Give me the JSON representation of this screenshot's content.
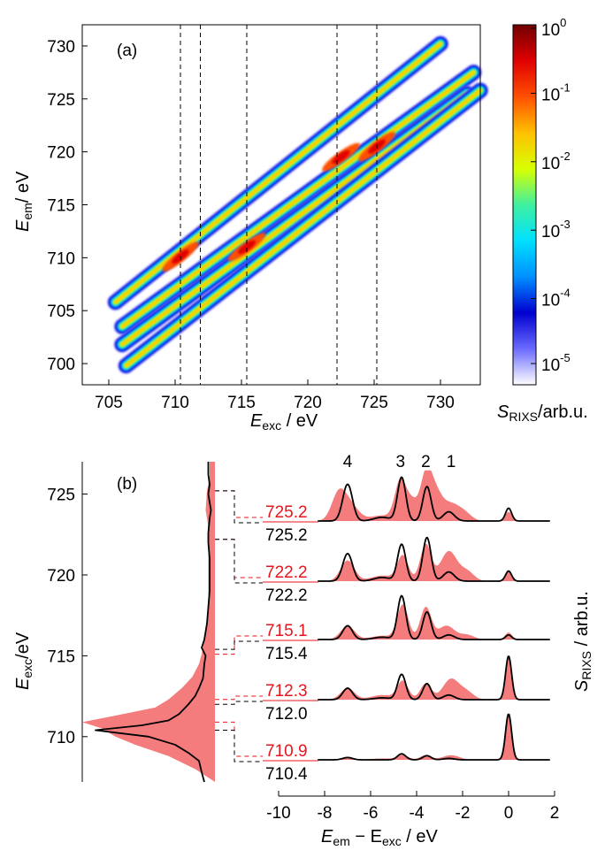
{
  "chart_data": [
    {
      "type": "heatmap",
      "panel_label": "(a)",
      "xlabel_main": "E",
      "xlabel_sub": "exc",
      "xlabel_unit": " / eV",
      "ylabel_main": "E",
      "ylabel_sub": "em",
      "ylabel_unit": "/ eV",
      "xlim": [
        703,
        733
      ],
      "ylim": [
        698,
        732
      ],
      "x_ticks": [
        705,
        710,
        715,
        720,
        725,
        730
      ],
      "y_ticks": [
        700,
        705,
        710,
        715,
        720,
        725,
        730
      ],
      "vlines": [
        710.4,
        711.9,
        715.4,
        722.2,
        725.2
      ],
      "colorbar": {
        "label_main": "S",
        "label_sub": "RIXS",
        "label_unit": "/arb.u.",
        "scale": "log",
        "ticks": [
          {
            "base": "10",
            "exp": "0"
          },
          {
            "base": "10",
            "exp": "-1"
          },
          {
            "base": "10",
            "exp": "-2"
          },
          {
            "base": "10",
            "exp": "-3"
          },
          {
            "base": "10",
            "exp": "-4"
          },
          {
            "base": "10",
            "exp": "-5"
          }
        ],
        "colors": [
          "#ffffff",
          "#6a6aff",
          "#0000d0",
          "#0090ff",
          "#00e0ff",
          "#40f0a0",
          "#d8ff00",
          "#ffc000",
          "#ff5000",
          "#e00000",
          "#700000"
        ]
      },
      "bands": [
        {
          "x": [
            705.5,
            730
          ],
          "y": [
            705.8,
            730.2
          ],
          "peak_x": 710.4,
          "peak_y": 710.1
        },
        {
          "x": [
            706,
            732.5
          ],
          "y": [
            703.5,
            727.5
          ],
          "peak_x": 722.5,
          "peak_y": 719.5
        },
        {
          "x": [
            706,
            732
          ],
          "y": [
            701.8,
            725.5
          ],
          "peak_x": 715.4,
          "peak_y": 711.0
        },
        {
          "x": [
            706.3,
            733
          ],
          "y": [
            699.8,
            725.8
          ],
          "peak_x": 725.2,
          "peak_y": 720.5
        }
      ]
    },
    {
      "type": "line",
      "panel_label": "(b)",
      "ylabel_main": "E",
      "ylabel_sub": "exc",
      "ylabel_unit": "/eV",
      "xlabel_main": "E",
      "xlabel_sub1": "em",
      "xlabel_mid": " − E",
      "xlabel_sub2": "exc",
      "xlabel_unit": " / eV",
      "right_label_main": "S",
      "right_label_sub": "RIXS",
      "right_label_unit": " / arb.u.",
      "left_y_ticks": [
        710,
        715,
        720,
        725
      ],
      "left_ylim": [
        707.2,
        727
      ],
      "x_ticks": [
        -10,
        -8,
        -6,
        -4,
        -2,
        0,
        2
      ],
      "xlim": [
        -10,
        2
      ],
      "peak_labels": [
        {
          "text": "4",
          "x": -7.0
        },
        {
          "text": "3",
          "x": -4.7
        },
        {
          "text": "2",
          "x": -3.6
        },
        {
          "text": "1",
          "x": -2.5
        }
      ],
      "xas": {
        "theory": [
          [
            707.2,
            0.08
          ],
          [
            707.8,
            0.1
          ],
          [
            708.5,
            0.12
          ],
          [
            709,
            0.2
          ],
          [
            709.5,
            0.3
          ],
          [
            710,
            0.5
          ],
          [
            710.4,
            0.9
          ],
          [
            710.7,
            0.55
          ],
          [
            711,
            0.35
          ],
          [
            711.4,
            0.27
          ],
          [
            712,
            0.2
          ],
          [
            712.5,
            0.15
          ],
          [
            713,
            0.12
          ],
          [
            713.6,
            0.09
          ],
          [
            714.5,
            0.08
          ],
          [
            715,
            0.07
          ],
          [
            715.5,
            0.1
          ],
          [
            716,
            0.08
          ],
          [
            717,
            0.06
          ],
          [
            718,
            0.05
          ],
          [
            719,
            0.04
          ],
          [
            720,
            0.04
          ],
          [
            721,
            0.04
          ],
          [
            722,
            0.05
          ],
          [
            722.6,
            0.05
          ],
          [
            723.5,
            0.04
          ],
          [
            724,
            0.03
          ],
          [
            725,
            0.05
          ],
          [
            725.6,
            0.04
          ],
          [
            726.2,
            0.05
          ],
          [
            727,
            0.05
          ]
        ],
        "experiment": [
          [
            707.2,
            0.0
          ],
          [
            708,
            0.15
          ],
          [
            708.8,
            0.35
          ],
          [
            709.5,
            0.6
          ],
          [
            710,
            0.75
          ],
          [
            710.5,
            0.85
          ],
          [
            710.9,
            1.0
          ],
          [
            711.3,
            0.75
          ],
          [
            711.8,
            0.45
          ],
          [
            712.3,
            0.35
          ],
          [
            713,
            0.25
          ],
          [
            713.7,
            0.17
          ],
          [
            714.5,
            0.12
          ],
          [
            715.1,
            0.1
          ],
          [
            716,
            0.08
          ],
          [
            717,
            0.06
          ],
          [
            718,
            0.05
          ],
          [
            719,
            0.05
          ],
          [
            720,
            0.05
          ],
          [
            721,
            0.05
          ],
          [
            722.2,
            0.05
          ],
          [
            723,
            0.05
          ],
          [
            724,
            0.07
          ],
          [
            725.2,
            0.06
          ],
          [
            726,
            0.04
          ],
          [
            727,
            0.04
          ]
        ]
      },
      "spectra": [
        {
          "exc_exp": "725.2",
          "exc_theory": "725.2",
          "exp_peaks": [
            [
              -7.4,
              0.5,
              0.55
            ],
            [
              -6.9,
              0.6,
              0.35
            ],
            [
              -5.5,
              0.9,
              0.12
            ],
            [
              -4.7,
              0.4,
              0.85
            ],
            [
              -4.2,
              0.4,
              0.4
            ],
            [
              -3.6,
              0.4,
              0.9
            ],
            [
              -3.2,
              0.5,
              0.6
            ],
            [
              -2.5,
              0.6,
              0.35
            ],
            [
              -1.9,
              0.5,
              0.15
            ],
            [
              0.0,
              0.25,
              0.2
            ]
          ],
          "theory_peaks": [
            [
              -7.0,
              0.35,
              0.8
            ],
            [
              -5.5,
              0.6,
              0.08
            ],
            [
              -4.65,
              0.3,
              0.95
            ],
            [
              -3.55,
              0.3,
              0.75
            ],
            [
              -2.6,
              0.4,
              0.2
            ],
            [
              0.0,
              0.22,
              0.28
            ]
          ]
        },
        {
          "exc_exp": "722.2",
          "exc_theory": "722.2",
          "exp_peaks": [
            [
              -7.0,
              0.5,
              0.45
            ],
            [
              -5.5,
              0.8,
              0.12
            ],
            [
              -4.6,
              0.4,
              0.55
            ],
            [
              -3.6,
              0.4,
              0.8
            ],
            [
              -2.6,
              0.6,
              0.65
            ],
            [
              -1.8,
              0.5,
              0.2
            ],
            [
              0.0,
              0.25,
              0.2
            ]
          ],
          "theory_peaks": [
            [
              -7.0,
              0.35,
              0.6
            ],
            [
              -5.5,
              0.6,
              0.08
            ],
            [
              -4.65,
              0.3,
              0.8
            ],
            [
              -3.55,
              0.3,
              0.95
            ],
            [
              -2.6,
              0.4,
              0.2
            ],
            [
              0.0,
              0.22,
              0.22
            ]
          ]
        },
        {
          "exc_exp": "715.1",
          "exc_theory": "715.4",
          "exp_peaks": [
            [
              -7.0,
              0.5,
              0.3
            ],
            [
              -5.5,
              0.8,
              0.08
            ],
            [
              -4.6,
              0.4,
              0.75
            ],
            [
              -3.6,
              0.4,
              0.7
            ],
            [
              -2.7,
              0.6,
              0.3
            ],
            [
              -1.8,
              0.5,
              0.1
            ],
            [
              0.0,
              0.25,
              0.15
            ]
          ],
          "theory_peaks": [
            [
              -7.0,
              0.35,
              0.3
            ],
            [
              -5.5,
              0.6,
              0.05
            ],
            [
              -4.65,
              0.3,
              0.95
            ],
            [
              -3.55,
              0.3,
              0.6
            ],
            [
              -2.6,
              0.4,
              0.1
            ],
            [
              0.0,
              0.22,
              0.1
            ]
          ]
        },
        {
          "exc_exp": "712.3",
          "exc_theory": "712.0",
          "exp_peaks": [
            [
              -7.0,
              0.5,
              0.25
            ],
            [
              -5.5,
              0.8,
              0.1
            ],
            [
              -4.6,
              0.4,
              0.4
            ],
            [
              -3.6,
              0.4,
              0.35
            ],
            [
              -2.5,
              0.6,
              0.45
            ],
            [
              -1.8,
              0.5,
              0.15
            ],
            [
              0.0,
              0.25,
              0.9
            ]
          ],
          "theory_peaks": [
            [
              -7.0,
              0.35,
              0.25
            ],
            [
              -5.5,
              0.6,
              0.04
            ],
            [
              -4.65,
              0.3,
              0.55
            ],
            [
              -3.55,
              0.3,
              0.35
            ],
            [
              -2.6,
              0.4,
              0.1
            ],
            [
              0.0,
              0.22,
              0.95
            ]
          ]
        },
        {
          "exc_exp": "710.9",
          "exc_theory": "710.4",
          "exp_peaks": [
            [
              -7.0,
              0.5,
              0.05
            ],
            [
              -5.5,
              0.8,
              0.03
            ],
            [
              -4.6,
              0.4,
              0.1
            ],
            [
              -3.6,
              0.4,
              0.1
            ],
            [
              -2.5,
              0.6,
              0.1
            ],
            [
              0.0,
              0.25,
              0.95
            ]
          ],
          "theory_peaks": [
            [
              -7.0,
              0.35,
              0.05
            ],
            [
              -4.65,
              0.3,
              0.13
            ],
            [
              -3.55,
              0.3,
              0.09
            ],
            [
              -2.6,
              0.4,
              0.03
            ],
            [
              0.0,
              0.22,
              1.0
            ]
          ]
        }
      ],
      "colors": {
        "experiment": "#f47c7c",
        "theory": "#000000",
        "exp_label": "#e8141c",
        "dash_exp": "#e8141c",
        "dash_theory": "#000000"
      }
    }
  ]
}
